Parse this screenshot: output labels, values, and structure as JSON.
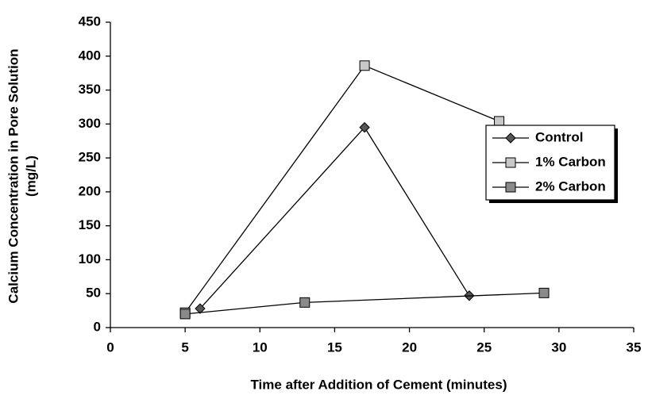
{
  "chart_data": {
    "type": "line",
    "xlabel": "Time after Addition of Cement (minutes)",
    "ylabel": [
      "Calcium Concentration in Pore Solution",
      "(mg/L)"
    ],
    "xlim": [
      0,
      35
    ],
    "xticks": [
      0,
      5,
      10,
      15,
      20,
      25,
      30,
      35
    ],
    "ylim": [
      0,
      450
    ],
    "yticks": [
      0,
      50,
      100,
      150,
      200,
      250,
      300,
      350,
      400,
      450
    ],
    "legend": "right",
    "series": [
      {
        "name": "Control",
        "color": "#555555",
        "marker": "diamond",
        "x": [
          6,
          17,
          24
        ],
        "values": [
          28,
          295,
          47
        ]
      },
      {
        "name": "1% Carbon",
        "color": "#c8c8c8",
        "marker": "square",
        "x": [
          5,
          17,
          26
        ],
        "values": [
          22,
          386,
          304
        ]
      },
      {
        "name": "2% Carbon",
        "color": "#8a8a8a",
        "marker": "square",
        "x": [
          5,
          13,
          29
        ],
        "values": [
          20,
          37,
          51
        ]
      }
    ]
  }
}
